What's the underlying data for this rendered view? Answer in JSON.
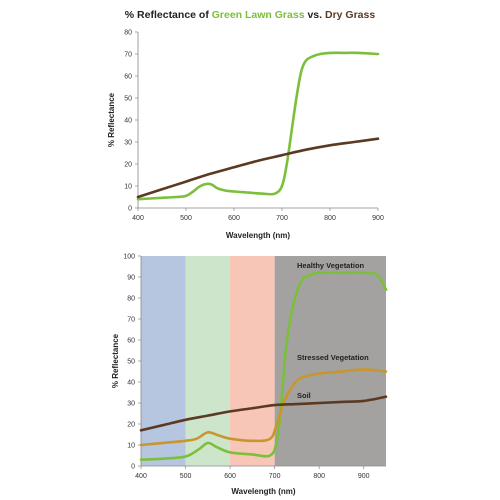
{
  "chart_data": [
    {
      "type": "line",
      "title_parts": [
        {
          "text": "% Reflectance of ",
          "color": "#222222"
        },
        {
          "text": "Green Lawn Grass",
          "color": "#7bbf3a"
        },
        {
          "text": " vs. ",
          "color": "#222222"
        },
        {
          "text": "Dry Grass",
          "color": "#5a3a22"
        }
      ],
      "xlabel": "Wavelength (nm)",
      "ylabel": "% Reflectance",
      "xlim": [
        400,
        900
      ],
      "ylim": [
        0,
        80
      ],
      "xticks": [
        400,
        500,
        600,
        700,
        800,
        900
      ],
      "yticks": [
        0,
        10,
        20,
        30,
        40,
        50,
        60,
        70,
        80
      ],
      "grid": false,
      "series": [
        {
          "color": "#7bbf3a",
          "x": [
            400,
            440,
            480,
            500,
            515,
            530,
            545,
            555,
            565,
            580,
            600,
            630,
            660,
            685,
            700,
            710,
            720,
            730,
            740,
            750,
            765,
            780,
            800,
            830,
            860,
            900
          ],
          "y": [
            4,
            4.5,
            5,
            5.5,
            7.5,
            10,
            11,
            10.5,
            9,
            8,
            7.5,
            7,
            6.5,
            6.5,
            10,
            20,
            35,
            50,
            62,
            67,
            69,
            70,
            70.5,
            70.5,
            70.5,
            70
          ]
        },
        {
          "color": "#5a3a22",
          "x": [
            400,
            450,
            500,
            550,
            600,
            650,
            700,
            750,
            800,
            850,
            900
          ],
          "y": [
            5,
            8.5,
            12,
            15.5,
            18.5,
            21.5,
            24,
            26.5,
            28.5,
            30,
            31.5
          ]
        }
      ]
    },
    {
      "type": "line",
      "xlabel": "Wavelength (nm)",
      "ylabel": "% Reflectance",
      "xlim": [
        400,
        950
      ],
      "ylim": [
        0,
        100
      ],
      "xticks": [
        400,
        500,
        600,
        700,
        800,
        900
      ],
      "yticks": [
        0,
        10,
        20,
        30,
        40,
        50,
        60,
        70,
        80,
        90,
        100
      ],
      "grid": false,
      "bands": [
        {
          "from": 400,
          "to": 500,
          "color": "#b7c6e0"
        },
        {
          "from": 500,
          "to": 600,
          "color": "#cde6cb"
        },
        {
          "from": 600,
          "to": 700,
          "color": "#f7c6b6"
        },
        {
          "from": 700,
          "to": 950,
          "color": "#a4a2a1"
        }
      ],
      "series": [
        {
          "name": "Healthy Vegetation",
          "color": "#7bbf3a",
          "x": [
            400,
            450,
            500,
            530,
            550,
            570,
            600,
            650,
            690,
            705,
            715,
            725,
            740,
            760,
            780,
            800,
            850,
            900,
            930,
            950
          ],
          "y": [
            3,
            3.5,
            4.5,
            8,
            11,
            9,
            6.5,
            5.5,
            5,
            12,
            30,
            55,
            75,
            88,
            91,
            92,
            92,
            92,
            91,
            84
          ]
        },
        {
          "name": "Stressed Vegetation",
          "color": "#c8962e",
          "x": [
            400,
            450,
            500,
            525,
            550,
            575,
            600,
            650,
            690,
            705,
            720,
            740,
            760,
            800,
            850,
            900,
            950
          ],
          "y": [
            10,
            11,
            12,
            13,
            16,
            14.5,
            13,
            12,
            13,
            20,
            30,
            38,
            42,
            44,
            45,
            46,
            45
          ]
        },
        {
          "name": "Soil",
          "color": "#5a3a22",
          "x": [
            400,
            450,
            500,
            550,
            600,
            650,
            700,
            750,
            800,
            850,
            900,
            950
          ],
          "y": [
            17,
            19.5,
            22,
            24,
            26,
            27.5,
            29,
            29.5,
            30,
            30.5,
            31,
            33
          ]
        }
      ]
    }
  ]
}
